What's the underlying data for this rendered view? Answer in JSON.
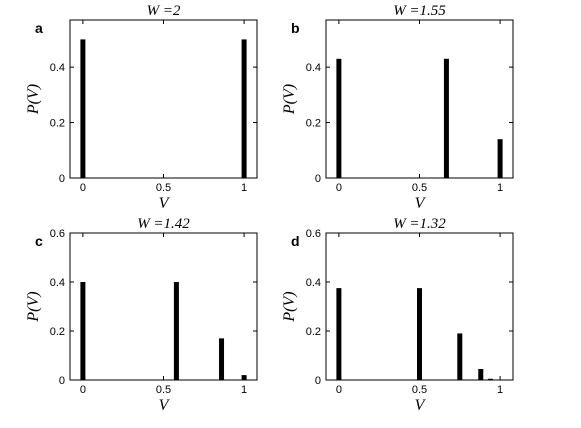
{
  "chart_data": [
    {
      "panel": "a",
      "title": "W =2",
      "type": "bar",
      "xlabel": "V",
      "ylabel": "P(V)",
      "xlim": [
        -0.08,
        1.08
      ],
      "ylim": [
        0,
        0.57
      ],
      "xticks": [
        "0",
        "0.5",
        "1"
      ],
      "yticks": [
        "0",
        "0.2",
        "0.4"
      ],
      "x": [
        0,
        1
      ],
      "values": [
        0.5,
        0.5
      ]
    },
    {
      "panel": "b",
      "title": "W =1.55",
      "type": "bar",
      "xlabel": "V",
      "ylabel": "P(V)",
      "xlim": [
        -0.08,
        1.08
      ],
      "ylim": [
        0,
        0.57
      ],
      "xticks": [
        "0",
        "0.5",
        "1"
      ],
      "yticks": [
        "0",
        "0.2",
        "0.4"
      ],
      "x": [
        0,
        0.667,
        1
      ],
      "values": [
        0.43,
        0.43,
        0.14
      ]
    },
    {
      "panel": "c",
      "title": "W =1.42",
      "type": "bar",
      "xlabel": "V",
      "ylabel": "P(V)",
      "xlim": [
        -0.08,
        1.08
      ],
      "ylim": [
        0,
        0.6
      ],
      "xticks": [
        "0",
        "0.5",
        "1"
      ],
      "yticks": [
        "0",
        "0.2",
        "0.4",
        "0.6"
      ],
      "x": [
        0,
        0.58,
        0.86,
        1
      ],
      "values": [
        0.4,
        0.4,
        0.17,
        0.02
      ]
    },
    {
      "panel": "d",
      "title": "W =1.32",
      "type": "bar",
      "xlabel": "V",
      "ylabel": "P(V)",
      "xlim": [
        -0.08,
        1.08
      ],
      "ylim": [
        0,
        0.6
      ],
      "xticks": [
        "0",
        "0.5",
        "1"
      ],
      "yticks": [
        "0",
        "0.2",
        "0.4",
        "0.6"
      ],
      "x": [
        0,
        0.5,
        0.75,
        0.88,
        0.94
      ],
      "values": [
        0.375,
        0.375,
        0.19,
        0.045,
        0.005
      ]
    }
  ]
}
